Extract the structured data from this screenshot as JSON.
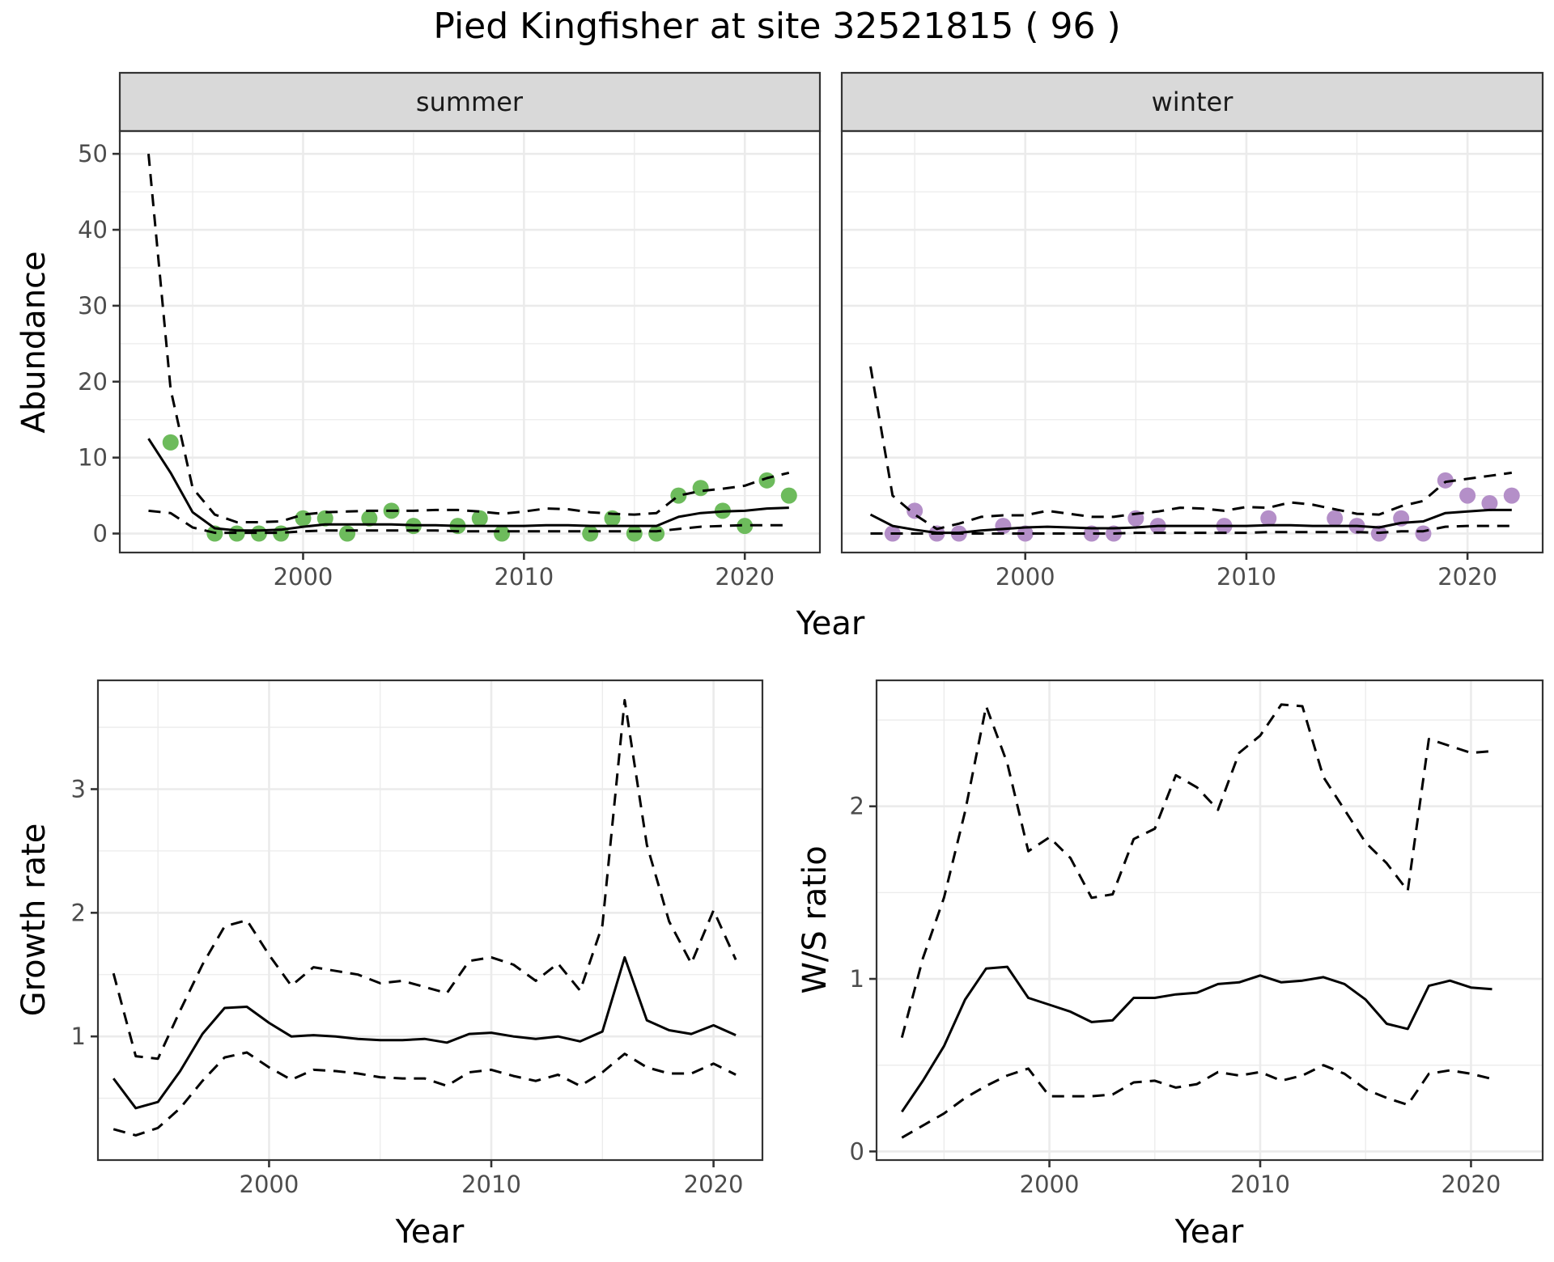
{
  "chart_data": {
    "type": "line",
    "title": "Pied Kingfisher at site 32521815 ( 96 )",
    "colors": {
      "summer_points": "#6dbb5c",
      "winter_points": "#b48fc8",
      "lines": "#000000"
    },
    "panels": [
      {
        "id": "abundance",
        "facets": [
          "summer",
          "winter"
        ],
        "xlabel": "Year",
        "ylabel": "Abundance",
        "xlim": [
          1991.7,
          2023.4
        ],
        "ylim": [
          -2.5,
          53
        ],
        "xticks": [
          2000,
          2010,
          2020
        ],
        "yticks": [
          0,
          10,
          20,
          30,
          40,
          50
        ],
        "grid": true,
        "series": [
          {
            "facet": "summer",
            "name": "observed",
            "kind": "points",
            "x": [
              1994,
              1996,
              1997,
              1998,
              1999,
              2000,
              2001,
              2002,
              2003,
              2004,
              2005,
              2007,
              2008,
              2009,
              2013,
              2014,
              2015,
              2016,
              2017,
              2018,
              2019,
              2020,
              2021,
              2022
            ],
            "y": [
              12,
              0,
              0,
              0,
              0,
              2,
              2,
              0,
              2,
              3,
              1,
              1,
              2,
              0,
              0,
              2,
              0,
              0,
              5,
              6,
              3,
              1,
              7,
              5
            ]
          },
          {
            "facet": "summer",
            "name": "mean",
            "kind": "line",
            "x": [
              1993,
              1994,
              1995,
              1996,
              1997,
              1998,
              1999,
              2000,
              2001,
              2002,
              2003,
              2004,
              2005,
              2006,
              2007,
              2008,
              2009,
              2010,
              2011,
              2012,
              2013,
              2014,
              2015,
              2016,
              2017,
              2018,
              2019,
              2020,
              2021,
              2022
            ],
            "y": [
              12.5,
              8,
              2.8,
              0.7,
              0.4,
              0.4,
              0.5,
              0.9,
              1.2,
              1.2,
              1.2,
              1.2,
              1.1,
              1.1,
              1.0,
              1.0,
              1.0,
              1.0,
              1.1,
              1.1,
              1.0,
              1.0,
              1.0,
              1.0,
              2.2,
              2.7,
              2.9,
              3.0,
              3.3,
              3.4
            ]
          },
          {
            "facet": "summer",
            "name": "upper",
            "kind": "dashed",
            "x": [
              1993,
              1994,
              1995,
              1996,
              1997,
              1998,
              1999,
              2000,
              2001,
              2002,
              2003,
              2004,
              2005,
              2006,
              2007,
              2008,
              2009,
              2010,
              2011,
              2012,
              2013,
              2014,
              2015,
              2016,
              2017,
              2018,
              2019,
              2020,
              2021,
              2022
            ],
            "y": [
              50,
              19,
              6,
              2.5,
              1.5,
              1.5,
              1.6,
              2.5,
              2.8,
              2.9,
              3.0,
              3.0,
              3.0,
              3.1,
              3.1,
              2.9,
              2.6,
              2.9,
              3.3,
              3.2,
              2.8,
              2.6,
              2.5,
              2.7,
              5.0,
              5.6,
              5.9,
              6.3,
              7.3,
              8.0
            ]
          },
          {
            "facet": "summer",
            "name": "lower",
            "kind": "dashed",
            "x": [
              1993,
              1994,
              1995,
              1996,
              1997,
              1998,
              1999,
              2000,
              2001,
              2002,
              2003,
              2004,
              2005,
              2006,
              2007,
              2008,
              2009,
              2010,
              2011,
              2012,
              2013,
              2014,
              2015,
              2016,
              2017,
              2018,
              2019,
              2020,
              2021,
              2022
            ],
            "y": [
              3.0,
              2.7,
              0.8,
              0.1,
              0.1,
              0.1,
              0.1,
              0.3,
              0.4,
              0.4,
              0.4,
              0.4,
              0.4,
              0.4,
              0.3,
              0.3,
              0.3,
              0.3,
              0.3,
              0.3,
              0.3,
              0.3,
              0.3,
              0.3,
              0.6,
              0.9,
              1.0,
              1.1,
              1.1,
              1.1
            ]
          },
          {
            "facet": "winter",
            "name": "observed",
            "kind": "points",
            "x": [
              1994,
              1995,
              1996,
              1997,
              1999,
              2000,
              2003,
              2004,
              2005,
              2006,
              2009,
              2011,
              2014,
              2015,
              2016,
              2017,
              2018,
              2019,
              2020,
              2021,
              2022
            ],
            "y": [
              0,
              3,
              0,
              0,
              1,
              0,
              0,
              0,
              2,
              1,
              1,
              2,
              2,
              1,
              0,
              2,
              0,
              7,
              5,
              4,
              5
            ]
          },
          {
            "facet": "winter",
            "name": "mean",
            "kind": "line",
            "x": [
              1993,
              1994,
              1995,
              1996,
              1997,
              1998,
              1999,
              2000,
              2001,
              2002,
              2003,
              2004,
              2005,
              2006,
              2007,
              2008,
              2009,
              2010,
              2011,
              2012,
              2013,
              2014,
              2015,
              2016,
              2017,
              2018,
              2019,
              2020,
              2021,
              2022
            ],
            "y": [
              2.5,
              1.0,
              0.5,
              0.1,
              0.1,
              0.4,
              0.6,
              0.8,
              0.9,
              0.8,
              0.7,
              0.7,
              0.8,
              1.0,
              1.0,
              1.0,
              1.0,
              1.0,
              1.1,
              1.1,
              1.0,
              1.0,
              1.0,
              0.8,
              1.4,
              1.6,
              2.7,
              2.9,
              3.1,
              3.1
            ]
          },
          {
            "facet": "winter",
            "name": "upper",
            "kind": "dashed",
            "x": [
              1993,
              1994,
              1995,
              1996,
              1997,
              1998,
              1999,
              2000,
              2001,
              2002,
              2003,
              2004,
              2005,
              2006,
              2007,
              2008,
              2009,
              2010,
              2011,
              2012,
              2013,
              2014,
              2015,
              2016,
              2017,
              2018,
              2019,
              2020,
              2021,
              2022
            ],
            "y": [
              22,
              5,
              2.5,
              0.6,
              1.3,
              2.2,
              2.4,
              2.4,
              3.0,
              2.6,
              2.2,
              2.2,
              2.6,
              2.9,
              3.4,
              3.3,
              3.0,
              3.5,
              3.4,
              4.1,
              3.8,
              3.2,
              2.6,
              2.5,
              3.6,
              4.3,
              6.8,
              7.2,
              7.6,
              8.0
            ]
          },
          {
            "facet": "winter",
            "name": "lower",
            "kind": "dashed",
            "x": [
              1993,
              1994,
              1995,
              1996,
              1997,
              1998,
              1999,
              2000,
              2001,
              2002,
              2003,
              2004,
              2005,
              2006,
              2007,
              2008,
              2009,
              2010,
              2011,
              2012,
              2013,
              2014,
              2015,
              2016,
              2017,
              2018,
              2019,
              2020,
              2021,
              2022
            ],
            "y": [
              0,
              0,
              0,
              0,
              0,
              0,
              0,
              0,
              0,
              0,
              0,
              0,
              0.1,
              0.1,
              0.1,
              0.1,
              0.1,
              0.1,
              0.2,
              0.2,
              0.2,
              0.2,
              0.2,
              0.1,
              0.3,
              0.3,
              0.9,
              1.0,
              1.0,
              1.0
            ]
          }
        ]
      },
      {
        "id": "growth",
        "xlabel": "Year",
        "ylabel": "Growth rate",
        "xlim": [
          1992.3,
          2022.2
        ],
        "ylim": [
          0.0,
          3.88
        ],
        "xticks": [
          2000,
          2010,
          2020
        ],
        "yticks": [
          1,
          2,
          3
        ],
        "grid": true,
        "series": [
          {
            "name": "mean",
            "kind": "line",
            "x": [
              1993,
              1994,
              1995,
              1996,
              1997,
              1998,
              1999,
              2000,
              2001,
              2002,
              2003,
              2004,
              2005,
              2006,
              2007,
              2008,
              2009,
              2010,
              2011,
              2012,
              2013,
              2014,
              2015,
              2016,
              2017,
              2018,
              2019,
              2020,
              2021
            ],
            "y": [
              0.66,
              0.42,
              0.47,
              0.72,
              1.02,
              1.23,
              1.24,
              1.11,
              1.0,
              1.01,
              1.0,
              0.98,
              0.97,
              0.97,
              0.98,
              0.95,
              1.02,
              1.03,
              1.0,
              0.98,
              1.0,
              0.96,
              1.04,
              1.64,
              1.13,
              1.05,
              1.02,
              1.09,
              1.01
            ]
          },
          {
            "name": "upper",
            "kind": "dashed",
            "x": [
              1993,
              1994,
              1995,
              1996,
              1997,
              1998,
              1999,
              2000,
              2001,
              2002,
              2003,
              2004,
              2005,
              2006,
              2007,
              2008,
              2009,
              2010,
              2011,
              2012,
              2013,
              2014,
              2015,
              2016,
              2017,
              2018,
              2019,
              2020,
              2021
            ],
            "y": [
              1.51,
              0.84,
              0.82,
              1.21,
              1.58,
              1.89,
              1.94,
              1.66,
              1.41,
              1.56,
              1.53,
              1.5,
              1.43,
              1.45,
              1.4,
              1.35,
              1.61,
              1.64,
              1.58,
              1.45,
              1.59,
              1.37,
              1.9,
              3.72,
              2.55,
              1.93,
              1.59,
              2.02,
              1.62
            ]
          },
          {
            "name": "lower",
            "kind": "dashed",
            "x": [
              1993,
              1994,
              1995,
              1996,
              1997,
              1998,
              1999,
              2000,
              2001,
              2002,
              2003,
              2004,
              2005,
              2006,
              2007,
              2008,
              2009,
              2010,
              2011,
              2012,
              2013,
              2014,
              2015,
              2016,
              2017,
              2018,
              2019,
              2020,
              2021
            ],
            "y": [
              0.25,
              0.2,
              0.26,
              0.42,
              0.64,
              0.83,
              0.87,
              0.75,
              0.65,
              0.73,
              0.72,
              0.7,
              0.67,
              0.66,
              0.66,
              0.6,
              0.71,
              0.73,
              0.68,
              0.64,
              0.69,
              0.6,
              0.71,
              0.86,
              0.75,
              0.7,
              0.7,
              0.78,
              0.69
            ]
          }
        ]
      },
      {
        "id": "ws_ratio",
        "xlabel": "Year",
        "ylabel": "W/S ratio",
        "xlim": [
          1991.8,
          2023.4
        ],
        "ylim": [
          -0.05,
          2.73
        ],
        "xticks": [
          2000,
          2010,
          2020
        ],
        "yticks": [
          0,
          1,
          2
        ],
        "grid": true,
        "series": [
          {
            "name": "mean",
            "kind": "line",
            "x": [
              1993,
              1994,
              1995,
              1996,
              1997,
              1998,
              1999,
              2000,
              2001,
              2002,
              2003,
              2004,
              2005,
              2006,
              2007,
              2008,
              2009,
              2010,
              2011,
              2012,
              2013,
              2014,
              2015,
              2016,
              2017,
              2018,
              2019,
              2020,
              2021
            ],
            "y": [
              0.23,
              0.41,
              0.61,
              0.88,
              1.06,
              1.07,
              0.89,
              0.85,
              0.81,
              0.75,
              0.76,
              0.89,
              0.89,
              0.91,
              0.92,
              0.97,
              0.98,
              1.02,
              0.98,
              0.99,
              1.01,
              0.97,
              0.88,
              0.74,
              0.71,
              0.96,
              0.99,
              0.95,
              0.94
            ]
          },
          {
            "name": "upper",
            "kind": "dashed",
            "x": [
              1993,
              1994,
              1995,
              1996,
              1997,
              1998,
              1999,
              2000,
              2001,
              2002,
              2003,
              2004,
              2005,
              2006,
              2007,
              2008,
              2009,
              2010,
              2011,
              2012,
              2013,
              2014,
              2015,
              2016,
              2017,
              2018,
              2019,
              2020,
              2021
            ],
            "y": [
              0.66,
              1.12,
              1.47,
              1.97,
              2.58,
              2.25,
              1.74,
              1.82,
              1.7,
              1.47,
              1.49,
              1.81,
              1.87,
              2.18,
              2.11,
              1.98,
              2.31,
              2.41,
              2.59,
              2.58,
              2.17,
              1.98,
              1.79,
              1.67,
              1.51,
              2.39,
              2.35,
              2.31,
              2.32
            ]
          },
          {
            "name": "lower",
            "kind": "dashed",
            "x": [
              1993,
              1994,
              1995,
              1996,
              1997,
              1998,
              1999,
              2000,
              2001,
              2002,
              2003,
              2004,
              2005,
              2006,
              2007,
              2008,
              2009,
              2010,
              2011,
              2012,
              2013,
              2014,
              2015,
              2016,
              2017,
              2018,
              2019,
              2020,
              2021
            ],
            "y": [
              0.08,
              0.15,
              0.22,
              0.31,
              0.38,
              0.44,
              0.48,
              0.32,
              0.32,
              0.32,
              0.33,
              0.4,
              0.41,
              0.37,
              0.39,
              0.46,
              0.44,
              0.46,
              0.41,
              0.44,
              0.5,
              0.45,
              0.36,
              0.31,
              0.27,
              0.45,
              0.47,
              0.45,
              0.42
            ]
          }
        ]
      }
    ]
  }
}
